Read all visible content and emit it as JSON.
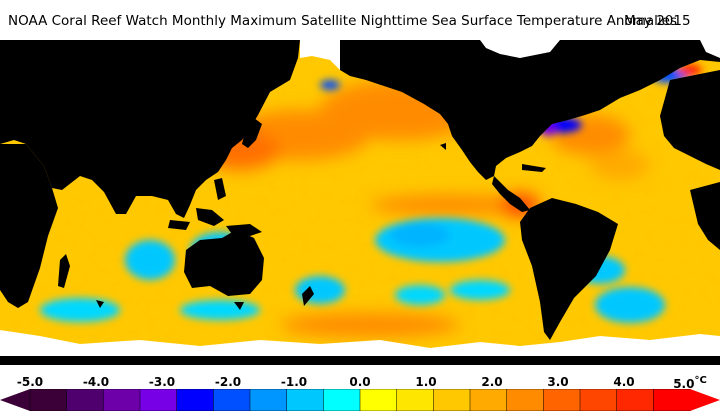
{
  "title": {
    "text": "NOAA Coral Reef Watch Monthly Maximum Satellite Nighttime Sea Surface Temperature Anomalies",
    "date": "May 2015"
  },
  "colorbar": {
    "ticks": [
      "-5.0",
      "-4.0",
      "-3.0",
      "-2.0",
      "-1.0",
      "0.0",
      "1.0",
      "2.0",
      "3.0",
      "4.0",
      "5.0"
    ],
    "unit": "°C",
    "colors": [
      "#3c0038",
      "#50006e",
      "#6e00aa",
      "#7800e6",
      "#0000ff",
      "#0050ff",
      "#0096ff",
      "#00c8ff",
      "#00ffff",
      "#ffff00",
      "#ffe600",
      "#ffc800",
      "#ffaa00",
      "#ff8c00",
      "#ff6400",
      "#ff4600",
      "#ff2800",
      "#ff0000"
    ]
  },
  "map": {
    "land_color": "#000000",
    "ice_color": "#ffffff",
    "ocean_base_color": "#ffc800"
  }
}
